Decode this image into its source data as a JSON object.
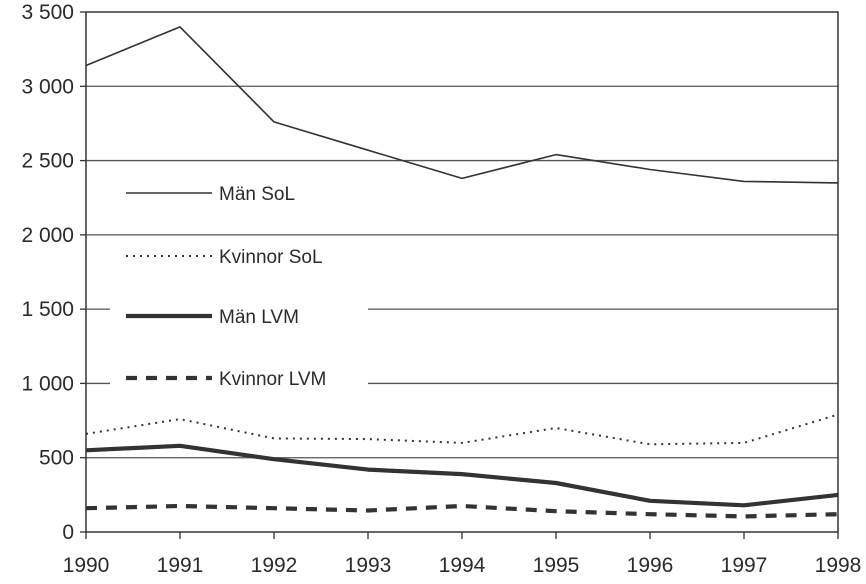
{
  "chart_data": {
    "type": "line",
    "title": "",
    "xlabel": "",
    "ylabel": "",
    "x": [
      1990,
      1991,
      1992,
      1993,
      1994,
      1995,
      1996,
      1997,
      1998
    ],
    "x_tick_labels": [
      "1990",
      "1991",
      "1992",
      "1993",
      "1994",
      "1995",
      "1996",
      "1997",
      "1998"
    ],
    "y_ticks": [
      0,
      500,
      1000,
      1500,
      2000,
      2500,
      3000,
      3500
    ],
    "y_tick_labels": [
      "0",
      "500",
      "1 000",
      "1 500",
      "2 000",
      "2 500",
      "3 000",
      "3 500"
    ],
    "ylim": [
      0,
      3500
    ],
    "grid": "horizontal",
    "legend_position": "left",
    "series": [
      {
        "name": "Män SoL",
        "style": "thin-solid",
        "color": "#333333",
        "values": [
          3140,
          3400,
          2760,
          2570,
          2380,
          2540,
          2440,
          2360,
          2350
        ]
      },
      {
        "name": "Kvinnor SoL",
        "style": "dotted",
        "color": "#333333",
        "values": [
          660,
          760,
          630,
          625,
          600,
          700,
          590,
          600,
          790
        ]
      },
      {
        "name": "Män LVM",
        "style": "thick-solid",
        "color": "#333333",
        "values": [
          550,
          580,
          490,
          420,
          390,
          330,
          210,
          180,
          250
        ]
      },
      {
        "name": "Kvinnor LVM",
        "style": "thick-dashed",
        "color": "#333333",
        "values": [
          160,
          175,
          160,
          145,
          175,
          140,
          120,
          105,
          120
        ]
      }
    ]
  }
}
